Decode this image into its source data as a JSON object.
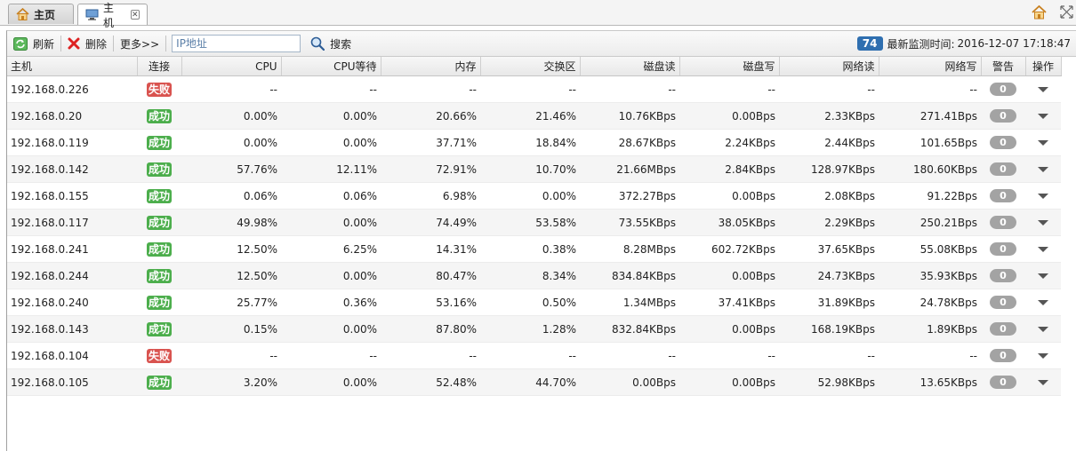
{
  "tabs": [
    {
      "label": "主页",
      "icon": "home-icon"
    },
    {
      "label": "主机",
      "icon": "monitor-icon"
    }
  ],
  "toolbar": {
    "refresh": "刷新",
    "delete": "删除",
    "more": "更多>>",
    "ip_placeholder": "IP地址",
    "search": "搜索",
    "count": "74",
    "last_monitor_label": "最新监测时间:",
    "last_monitor_time": "2016-12-07 17:18:47"
  },
  "columns": [
    "主机",
    "连接",
    "CPU",
    "CPU等待",
    "内存",
    "交换区",
    "磁盘读",
    "磁盘写",
    "网络读",
    "网络写",
    "警告",
    "操作"
  ],
  "rows": [
    {
      "host": "192.168.0.226",
      "conn": "失败",
      "status": "fail",
      "cpu": "--",
      "cpu_wait": "--",
      "mem": "--",
      "swap": "--",
      "disk_read": "--",
      "disk_write": "--",
      "net_read": "--",
      "net_write": "--",
      "alert": "0"
    },
    {
      "host": "192.168.0.20",
      "conn": "成功",
      "status": "ok",
      "cpu": "0.00%",
      "cpu_wait": "0.00%",
      "mem": "20.66%",
      "swap": "21.46%",
      "disk_read": "10.76KBps",
      "disk_write": "0.00Bps",
      "net_read": "2.33KBps",
      "net_write": "271.41Bps",
      "alert": "0"
    },
    {
      "host": "192.168.0.119",
      "conn": "成功",
      "status": "ok",
      "cpu": "0.00%",
      "cpu_wait": "0.00%",
      "mem": "37.71%",
      "swap": "18.84%",
      "disk_read": "28.67KBps",
      "disk_write": "2.24KBps",
      "net_read": "2.44KBps",
      "net_write": "101.65Bps",
      "alert": "0"
    },
    {
      "host": "192.168.0.142",
      "conn": "成功",
      "status": "ok",
      "cpu": "57.76%",
      "cpu_wait": "12.11%",
      "mem": "72.91%",
      "swap": "10.70%",
      "disk_read": "21.66MBps",
      "disk_write": "2.84KBps",
      "net_read": "128.97KBps",
      "net_write": "180.60KBps",
      "alert": "0"
    },
    {
      "host": "192.168.0.155",
      "conn": "成功",
      "status": "ok",
      "cpu": "0.06%",
      "cpu_wait": "0.06%",
      "mem": "6.98%",
      "swap": "0.00%",
      "disk_read": "372.27Bps",
      "disk_write": "0.00Bps",
      "net_read": "2.08KBps",
      "net_write": "91.22Bps",
      "alert": "0"
    },
    {
      "host": "192.168.0.117",
      "conn": "成功",
      "status": "ok",
      "cpu": "49.98%",
      "cpu_wait": "0.00%",
      "mem": "74.49%",
      "swap": "53.58%",
      "disk_read": "73.55KBps",
      "disk_write": "38.05KBps",
      "net_read": "2.29KBps",
      "net_write": "250.21Bps",
      "alert": "0"
    },
    {
      "host": "192.168.0.241",
      "conn": "成功",
      "status": "ok",
      "cpu": "12.50%",
      "cpu_wait": "6.25%",
      "mem": "14.31%",
      "swap": "0.38%",
      "disk_read": "8.28MBps",
      "disk_write": "602.72KBps",
      "net_read": "37.65KBps",
      "net_write": "55.08KBps",
      "alert": "0"
    },
    {
      "host": "192.168.0.244",
      "conn": "成功",
      "status": "ok",
      "cpu": "12.50%",
      "cpu_wait": "0.00%",
      "mem": "80.47%",
      "swap": "8.34%",
      "disk_read": "834.84KBps",
      "disk_write": "0.00Bps",
      "net_read": "24.73KBps",
      "net_write": "35.93KBps",
      "alert": "0"
    },
    {
      "host": "192.168.0.240",
      "conn": "成功",
      "status": "ok",
      "cpu": "25.77%",
      "cpu_wait": "0.36%",
      "mem": "53.16%",
      "swap": "0.50%",
      "disk_read": "1.34MBps",
      "disk_write": "37.41KBps",
      "net_read": "31.89KBps",
      "net_write": "24.78KBps",
      "alert": "0"
    },
    {
      "host": "192.168.0.143",
      "conn": "成功",
      "status": "ok",
      "cpu": "0.15%",
      "cpu_wait": "0.00%",
      "mem": "87.80%",
      "swap": "1.28%",
      "disk_read": "832.84KBps",
      "disk_write": "0.00Bps",
      "net_read": "168.19KBps",
      "net_write": "1.89KBps",
      "alert": "0"
    },
    {
      "host": "192.168.0.104",
      "conn": "失败",
      "status": "fail",
      "cpu": "--",
      "cpu_wait": "--",
      "mem": "--",
      "swap": "--",
      "disk_read": "--",
      "disk_write": "--",
      "net_read": "--",
      "net_write": "--",
      "alert": "0"
    },
    {
      "host": "192.168.0.105",
      "conn": "成功",
      "status": "ok",
      "cpu": "3.20%",
      "cpu_wait": "0.00%",
      "mem": "52.48%",
      "swap": "44.70%",
      "disk_read": "0.00Bps",
      "disk_write": "0.00Bps",
      "net_read": "52.98KBps",
      "net_write": "13.65KBps",
      "alert": "0"
    }
  ],
  "colors": {
    "ok": "#4cae4c",
    "fail": "#d9534f",
    "badge": "#2f6fb0",
    "alert": "#a3a3a3"
  }
}
